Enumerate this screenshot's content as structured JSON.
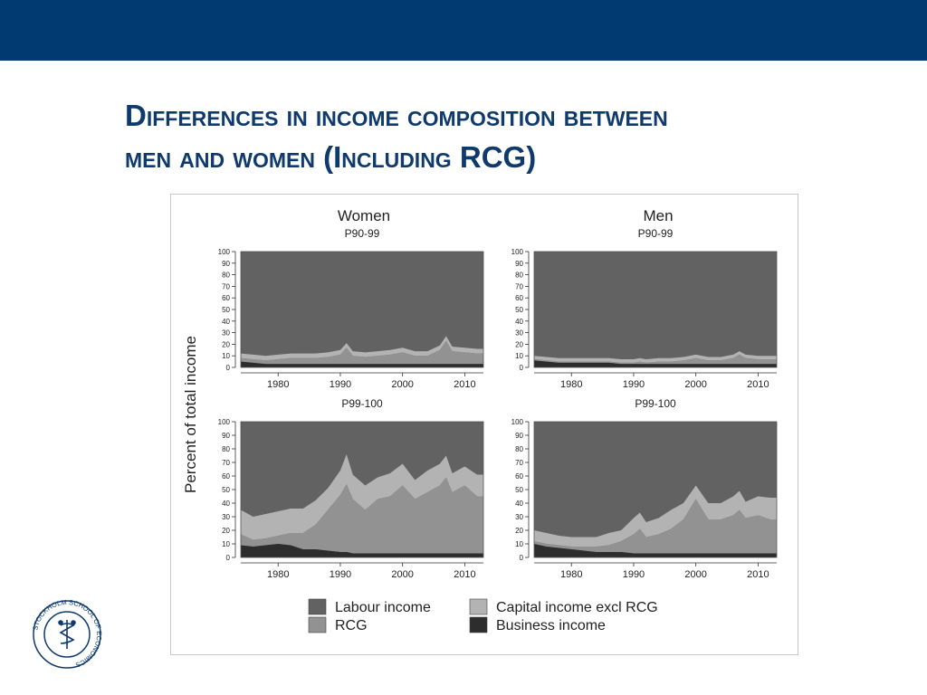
{
  "slide": {
    "title_line1": "Differences in income composition between",
    "title_line2": "men and women (Including RCG)",
    "logo_text": "STOCKHOLM SCHOOL OF ECONOMICS"
  },
  "colors": {
    "header_bar": "#003a70",
    "title": "#0e3a6e",
    "labour": "#626262",
    "rcg": "#929292",
    "capital": "#b3b3b3",
    "business": "#2d2d2d"
  },
  "chart_data": {
    "type": "area",
    "stacked": true,
    "y_axis_title": "Percent of total income",
    "ylim": [
      0,
      100
    ],
    "y_ticks": [
      0,
      10,
      20,
      30,
      40,
      50,
      60,
      70,
      80,
      90,
      100
    ],
    "x_range": [
      1974,
      2013
    ],
    "x_ticks": [
      1980,
      1990,
      2000,
      2010
    ],
    "groups": [
      "Women",
      "Men"
    ],
    "legend": [
      {
        "key": "labour",
        "label": "Labour income"
      },
      {
        "key": "capital",
        "label": "Capital income excl RCG"
      },
      {
        "key": "rcg",
        "label": "RCG"
      },
      {
        "key": "business",
        "label": "Business income"
      }
    ],
    "years": [
      1974,
      1976,
      1978,
      1980,
      1982,
      1984,
      1986,
      1988,
      1990,
      1991,
      1992,
      1994,
      1996,
      1998,
      2000,
      2002,
      2004,
      2006,
      2007,
      2008,
      2010,
      2012,
      2013
    ],
    "panels": [
      {
        "id": "women-p90-99",
        "group": "Women",
        "subtitle": "P90-99",
        "business": [
          5,
          4,
          3,
          3,
          3,
          3,
          3,
          3,
          3,
          3,
          3,
          3,
          3,
          3,
          3,
          3,
          3,
          3,
          3,
          3,
          3,
          3,
          3
        ],
        "rcg": [
          3,
          3,
          3,
          4,
          5,
          5,
          5,
          6,
          8,
          14,
          7,
          6,
          7,
          8,
          10,
          7,
          7,
          12,
          20,
          11,
          10,
          9,
          9
        ],
        "capital": [
          4,
          4,
          4,
          4,
          4,
          4,
          4,
          4,
          4,
          4,
          4,
          4,
          4,
          4,
          4,
          4,
          4,
          4,
          4,
          4,
          4,
          4,
          4
        ]
      },
      {
        "id": "men-p90-99",
        "group": "Men",
        "subtitle": "P90-99",
        "business": [
          6,
          5,
          4,
          4,
          4,
          4,
          4,
          3,
          3,
          3,
          3,
          3,
          3,
          3,
          3,
          3,
          3,
          3,
          3,
          3,
          3,
          3,
          3
        ],
        "rcg": [
          1,
          1,
          1,
          1,
          1,
          1,
          1,
          1,
          1,
          2,
          1,
          2,
          2,
          3,
          5,
          3,
          3,
          5,
          8,
          5,
          4,
          4,
          4
        ],
        "capital": [
          3,
          3,
          3,
          3,
          3,
          3,
          3,
          3,
          3,
          3,
          3,
          3,
          3,
          3,
          3,
          3,
          3,
          3,
          3,
          3,
          3,
          3,
          3
        ]
      },
      {
        "id": "women-p99-100",
        "group": "Women",
        "subtitle": "P99-100",
        "business": [
          9,
          8,
          9,
          10,
          9,
          6,
          6,
          5,
          4,
          4,
          3,
          3,
          3,
          3,
          3,
          3,
          3,
          3,
          3,
          3,
          3,
          3,
          3
        ],
        "rcg": [
          8,
          5,
          5,
          6,
          9,
          12,
          18,
          30,
          42,
          50,
          40,
          32,
          40,
          42,
          50,
          40,
          45,
          50,
          56,
          45,
          50,
          42,
          42
        ],
        "capital": [
          18,
          17,
          18,
          18,
          18,
          18,
          18,
          16,
          18,
          22,
          18,
          18,
          16,
          17,
          16,
          14,
          16,
          16,
          16,
          14,
          14,
          16,
          16
        ]
      },
      {
        "id": "men-p99-100",
        "group": "Men",
        "subtitle": "P99-100",
        "business": [
          10,
          8,
          7,
          6,
          5,
          4,
          4,
          4,
          3,
          3,
          3,
          3,
          3,
          3,
          3,
          3,
          3,
          3,
          3,
          3,
          3,
          3,
          3
        ],
        "rcg": [
          2,
          2,
          2,
          2,
          3,
          4,
          5,
          8,
          14,
          18,
          12,
          14,
          18,
          25,
          40,
          25,
          25,
          28,
          32,
          26,
          28,
          25,
          25
        ],
        "capital": [
          8,
          8,
          7,
          7,
          7,
          7,
          9,
          8,
          12,
          12,
          11,
          12,
          14,
          12,
          10,
          12,
          12,
          14,
          14,
          12,
          14,
          16,
          16
        ]
      }
    ]
  }
}
